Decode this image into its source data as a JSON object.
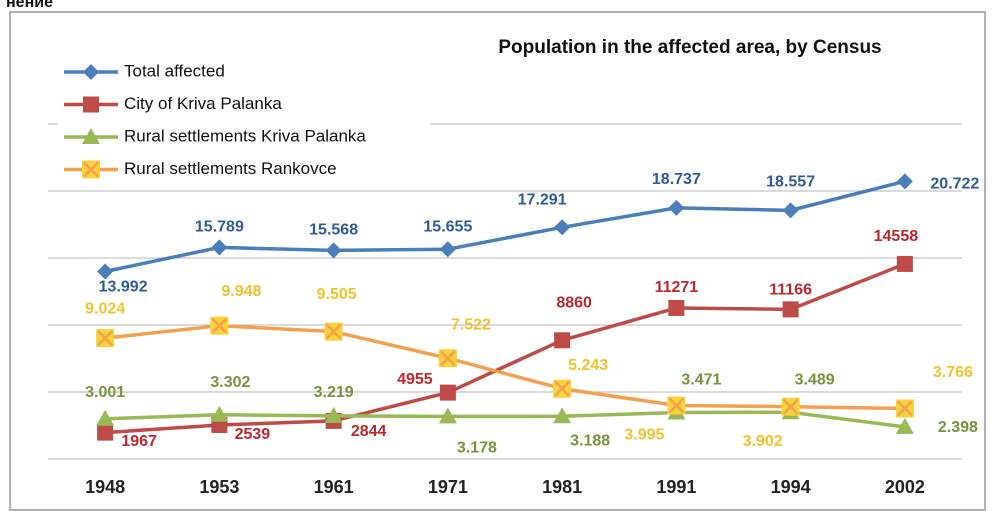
{
  "header_text": "нение",
  "chart_data": {
    "type": "line",
    "title": "Population in the affected area, by Census",
    "categories": [
      "1948",
      "1953",
      "1961",
      "1971",
      "1981",
      "1991",
      "1994",
      "2002"
    ],
    "series": [
      {
        "name": "Total affected",
        "color": "#4a7ebb",
        "label_color": "#2e5c9a",
        "marker": "diamond",
        "values": [
          13992,
          15789,
          15568,
          15655,
          17291,
          18737,
          18557,
          20722
        ],
        "value_labels": [
          "13.992",
          "15.789",
          "15.568",
          "15.655",
          "17.291",
          "18.737",
          "18.557",
          "20.722"
        ]
      },
      {
        "name": "City of Kriva Palanka",
        "color": "#be4b48",
        "label_color": "#c0262c",
        "marker": "square",
        "values": [
          1967,
          2539,
          2844,
          4955,
          8860,
          11271,
          11166,
          14558
        ]
      },
      {
        "name": "Rural settlements Kriva Palanka",
        "color": "#98b954",
        "label_color": "#77933c",
        "marker": "triangle",
        "values": [
          3001,
          3302,
          3219,
          3178,
          3188,
          3471,
          3489,
          2398
        ],
        "value_labels": [
          "3.001",
          "3.302",
          "3.219",
          "3.178",
          "3.188",
          "3.471",
          "3.489",
          "2.398"
        ]
      },
      {
        "name": "Rural settlements Rankovce",
        "color": "#f6a04d",
        "label_color": "#f2c12e",
        "marker": "xsquare",
        "values": [
          9024,
          9948,
          9505,
          7522,
          5243,
          3995,
          3902,
          3766
        ],
        "value_labels": [
          "9.024",
          "9.948",
          "9.505",
          "7.522",
          "5.243",
          "3.995",
          "3.902",
          "3.766"
        ]
      }
    ],
    "ylim": [
      0,
      25000
    ],
    "yticks": [
      0,
      5000,
      10000,
      15000,
      20000,
      25000
    ],
    "grid": true
  }
}
